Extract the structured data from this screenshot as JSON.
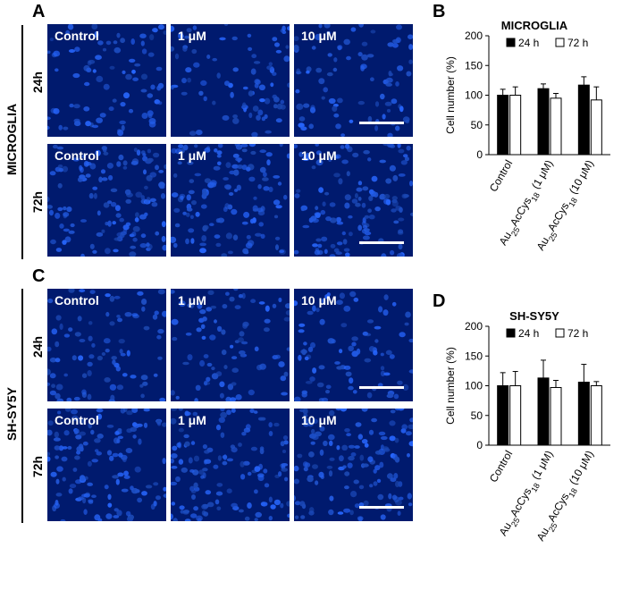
{
  "panels": {
    "a": "A",
    "b": "B",
    "c": "C",
    "d": "D"
  },
  "groups": [
    {
      "cell_line": "MICROGLIA",
      "rows": [
        {
          "label": "24h",
          "tiles": [
            "Control",
            "1 μM",
            "10 μM"
          ]
        },
        {
          "label": "72h",
          "tiles": [
            "Control",
            "1 μM",
            "10 μM"
          ]
        }
      ]
    },
    {
      "cell_line": "SH-SY5Y",
      "rows": [
        {
          "label": "24h",
          "tiles": [
            "Control",
            "1 μM",
            "10 μM"
          ]
        },
        {
          "label": "72h",
          "tiles": [
            "Control",
            "1 μM",
            "10 μM"
          ]
        }
      ]
    }
  ],
  "colors": {
    "tile_bg": "#001a6e",
    "nucleus": "#2f5cff",
    "bar_24h": "#000000",
    "bar_72h": "#ffffff"
  },
  "chart_data": [
    {
      "type": "bar",
      "title": "MICROGLIA",
      "ylabel": "Cell number (%)",
      "ylim": [
        0,
        200
      ],
      "yticks": [
        0,
        50,
        100,
        150,
        200
      ],
      "categories": [
        {
          "main": "Control"
        },
        {
          "main": "Au",
          "sub1": "25",
          "mid": "AcCys",
          "sub2": "18",
          "tail": " (1 μM)"
        },
        {
          "main": "Au",
          "sub1": "25",
          "mid": "AcCys",
          "sub2": "18",
          "tail": " (10 μM)"
        }
      ],
      "legend": {
        "position": "top",
        "entries": [
          "24 h",
          "72 h"
        ]
      },
      "series": [
        {
          "name": "24 h",
          "values": [
            100,
            111,
            117
          ],
          "errors": [
            10,
            8,
            14
          ]
        },
        {
          "name": "72 h",
          "values": [
            100,
            95,
            92
          ],
          "errors": [
            14,
            8,
            22
          ]
        }
      ]
    },
    {
      "type": "bar",
      "title": "SH-SY5Y",
      "ylabel": "Cell number (%)",
      "ylim": [
        0,
        200
      ],
      "yticks": [
        0,
        50,
        100,
        150,
        200
      ],
      "categories": [
        {
          "main": "Control"
        },
        {
          "main": "Au",
          "sub1": "25",
          "mid": "AcCys",
          "sub2": "18",
          "tail": " (1 μM)"
        },
        {
          "main": "Au",
          "sub1": "25",
          "mid": "AcCys",
          "sub2": "18",
          "tail": " (10 μM)"
        }
      ],
      "legend": {
        "position": "top",
        "entries": [
          "24 h",
          "72 h"
        ]
      },
      "series": [
        {
          "name": "24 h",
          "values": [
            100,
            113,
            106
          ],
          "errors": [
            22,
            30,
            30
          ]
        },
        {
          "name": "72 h",
          "values": [
            100,
            97,
            100
          ],
          "errors": [
            24,
            12,
            7
          ]
        }
      ]
    }
  ]
}
